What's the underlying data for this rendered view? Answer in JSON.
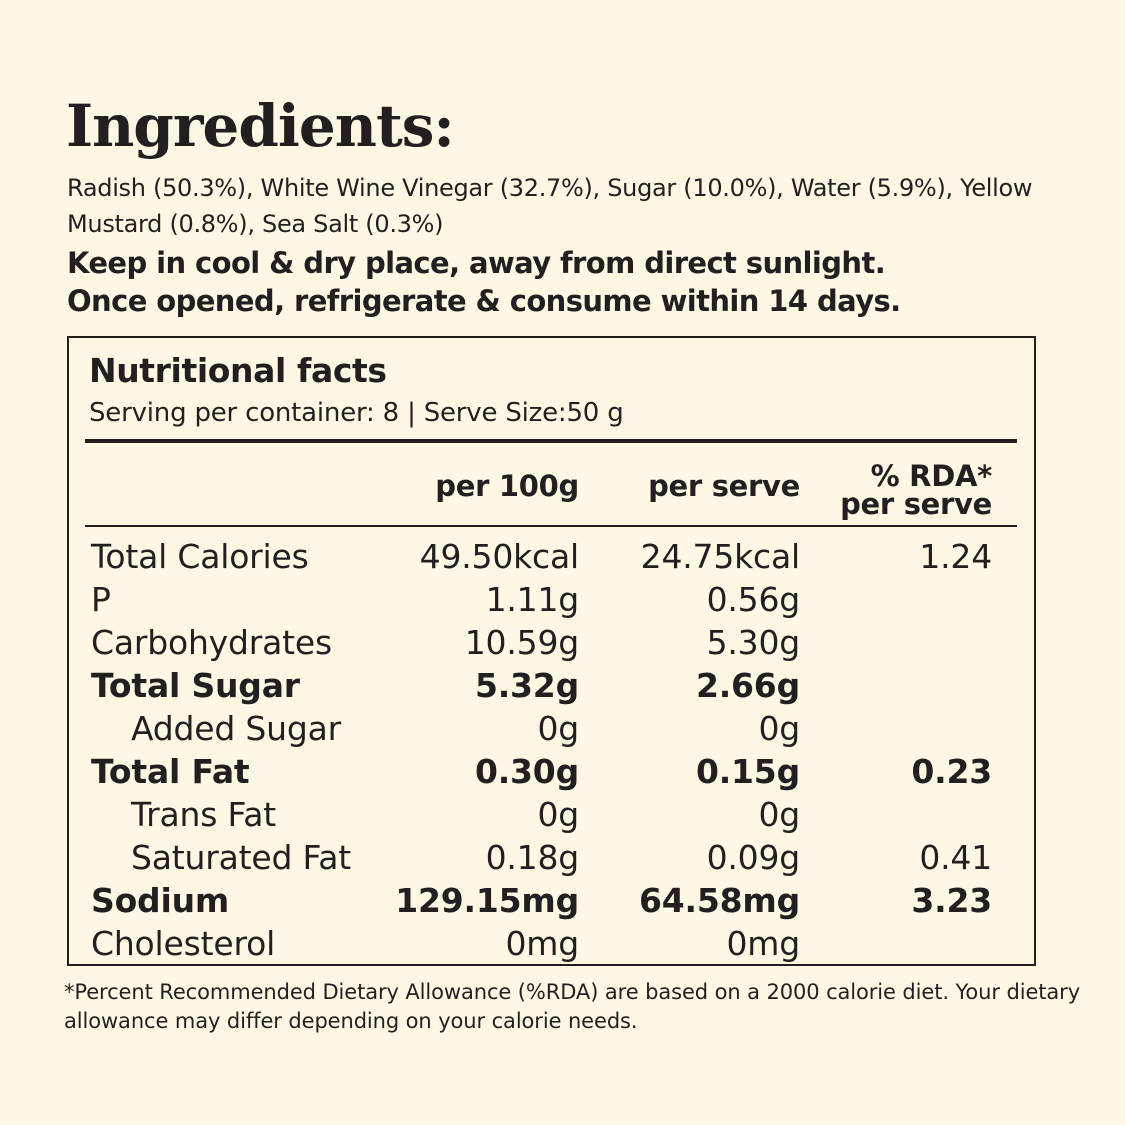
{
  "ingredients": {
    "title": "Ingredients:",
    "list": "Radish (50.3%), White Wine Vinegar (32.7%), Sugar (10.0%), Water (5.9%), Yellow Mustard (0.8%), Sea Salt (0.3%)",
    "storage_line1": "Keep in cool & dry place, away from direct sunlight.",
    "storage_line2": "Once opened, refrigerate & consume within 14 days."
  },
  "nutrition": {
    "heading": "Nutritional facts",
    "serving": "Serving per container: 8 | Serve Size:50 g",
    "columns": {
      "per_100g": "per 100g",
      "per_serve": "per serve",
      "rda_line1": "% RDA*",
      "rda_line2": "per serve"
    },
    "rows": [
      {
        "name": "Total Calories",
        "per_100g": "49.50kcal",
        "per_serve": "24.75kcal",
        "rda": "1.24",
        "bold": false,
        "indent": false
      },
      {
        "name": "P",
        "per_100g": "1.11g",
        "per_serve": "0.56g",
        "rda": "",
        "bold": false,
        "indent": false
      },
      {
        "name": "Carbohydrates",
        "per_100g": "10.59g",
        "per_serve": "5.30g",
        "rda": "",
        "bold": false,
        "indent": false
      },
      {
        "name": "Total Sugar",
        "per_100g": "5.32g",
        "per_serve": "2.66g",
        "rda": "",
        "bold": true,
        "indent": false
      },
      {
        "name": "Added Sugar",
        "per_100g": "0g",
        "per_serve": "0g",
        "rda": "",
        "bold": false,
        "indent": true
      },
      {
        "name": "Total Fat",
        "per_100g": "0.30g",
        "per_serve": "0.15g",
        "rda": "0.23",
        "bold": true,
        "indent": false
      },
      {
        "name": "Trans Fat",
        "per_100g": "0g",
        "per_serve": "0g",
        "rda": "",
        "bold": false,
        "indent": true
      },
      {
        "name": "Saturated Fat",
        "per_100g": "0.18g",
        "per_serve": "0.09g",
        "rda": "0.41",
        "bold": false,
        "indent": true
      },
      {
        "name": "Sodium",
        "per_100g": "129.15mg",
        "per_serve": "64.58mg",
        "rda": "3.23",
        "bold": true,
        "indent": false
      },
      {
        "name": "Cholesterol",
        "per_100g": "0mg",
        "per_serve": "0mg",
        "rda": "",
        "bold": false,
        "indent": false
      }
    ]
  },
  "footnote": "*Percent Recommended Dietary Allowance (%RDA) are based on a 2000 calorie diet. Your dietary allowance may differ depending on your calorie needs."
}
